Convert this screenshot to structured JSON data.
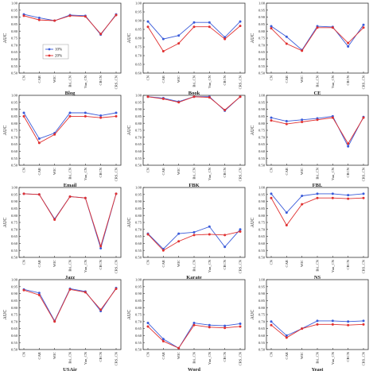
{
  "figure": {
    "ylabel": "AUC",
    "legend": {
      "labels": [
        "10%",
        "20%"
      ],
      "placement": "inside upper-left of first panel"
    },
    "colors": {
      "10%": "#3a5bd9",
      "20%": "#e03030"
    }
  },
  "chart_data": [
    {
      "type": "line",
      "title": "Blog",
      "categories": [
        "CN",
        "CAR",
        "WIC",
        "Bri_CN",
        "Yun_CN",
        "CRCN",
        "CRS_CN"
      ],
      "ylim": [
        0.5,
        1.0
      ],
      "yticks": [
        0.5,
        0.55,
        0.6,
        0.65,
        0.7,
        0.75,
        0.8,
        0.85,
        0.9,
        0.95,
        1.0
      ],
      "series": [
        {
          "name": "10%",
          "values": [
            0.92,
            0.895,
            0.875,
            0.915,
            0.91,
            0.775,
            0.92
          ]
        },
        {
          "name": "20%",
          "values": [
            0.91,
            0.88,
            0.875,
            0.91,
            0.905,
            0.78,
            0.915
          ]
        }
      ]
    },
    {
      "type": "line",
      "title": "Book",
      "categories": [
        "CN",
        "CAR",
        "WIC",
        "Bri_CN",
        "Yun_CN",
        "CRCN",
        "CRS_CN"
      ],
      "ylim": [
        0.6,
        1.0
      ],
      "yticks": [
        0.6,
        0.65,
        0.7,
        0.75,
        0.8,
        0.85,
        0.9,
        0.95,
        1.0
      ],
      "series": [
        {
          "name": "10%",
          "values": [
            0.895,
            0.795,
            0.815,
            0.89,
            0.89,
            0.805,
            0.895
          ]
        },
        {
          "name": "20%",
          "values": [
            0.865,
            0.725,
            0.77,
            0.865,
            0.865,
            0.795,
            0.87
          ]
        }
      ]
    },
    {
      "type": "line",
      "title": "CE",
      "categories": [
        "CN",
        "CAR",
        "WIC",
        "Bri_CN",
        "Yun_CN",
        "CRCN",
        "CRS_CN"
      ],
      "ylim": [
        0.5,
        1.0
      ],
      "yticks": [
        0.5,
        0.55,
        0.6,
        0.65,
        0.7,
        0.75,
        0.8,
        0.85,
        0.9,
        0.95,
        1.0
      ],
      "series": [
        {
          "name": "10%",
          "values": [
            0.835,
            0.76,
            0.665,
            0.835,
            0.83,
            0.69,
            0.845
          ]
        },
        {
          "name": "20%",
          "values": [
            0.82,
            0.71,
            0.66,
            0.825,
            0.825,
            0.715,
            0.825
          ]
        }
      ]
    },
    {
      "type": "line",
      "title": "Email",
      "categories": [
        "CN",
        "CAR",
        "WIC",
        "Bri_CN",
        "Yun_CN",
        "CRCN",
        "CRS_CN"
      ],
      "ylim": [
        0.5,
        1.0
      ],
      "yticks": [
        0.5,
        0.55,
        0.6,
        0.65,
        0.7,
        0.75,
        0.8,
        0.85,
        0.9,
        0.95,
        1.0
      ],
      "series": [
        {
          "name": "10%",
          "values": [
            0.875,
            0.69,
            0.73,
            0.875,
            0.875,
            0.855,
            0.875
          ]
        },
        {
          "name": "20%",
          "values": [
            0.85,
            0.66,
            0.72,
            0.85,
            0.85,
            0.84,
            0.85
          ]
        }
      ]
    },
    {
      "type": "line",
      "title": "FBK",
      "categories": [
        "CN",
        "CAR",
        "WIC",
        "Bri_CN",
        "Yun_CN",
        "CRCN",
        "CRS_CN"
      ],
      "ylim": [
        0.5,
        1.0
      ],
      "yticks": [
        0.5,
        0.55,
        0.6,
        0.65,
        0.7,
        0.75,
        0.8,
        0.85,
        0.9,
        0.95,
        1.0
      ],
      "series": [
        {
          "name": "10%",
          "values": [
            0.99,
            0.98,
            0.955,
            0.99,
            0.99,
            0.89,
            0.99
          ]
        },
        {
          "name": "20%",
          "values": [
            0.99,
            0.975,
            0.95,
            0.99,
            0.985,
            0.895,
            0.99
          ]
        }
      ]
    },
    {
      "type": "line",
      "title": "FBL",
      "categories": [
        "CN",
        "CAR",
        "WIC",
        "Bri_CN",
        "Yun_CN",
        "CRCN",
        "CRS_CN"
      ],
      "ylim": [
        0.5,
        1.0
      ],
      "yticks": [
        0.5,
        0.55,
        0.6,
        0.65,
        0.7,
        0.75,
        0.8,
        0.85,
        0.9,
        0.95,
        1.0
      ],
      "series": [
        {
          "name": "10%",
          "values": [
            0.84,
            0.815,
            0.825,
            0.835,
            0.85,
            0.635,
            0.845
          ]
        },
        {
          "name": "20%",
          "values": [
            0.82,
            0.795,
            0.81,
            0.825,
            0.84,
            0.655,
            0.84
          ]
        }
      ]
    },
    {
      "type": "line",
      "title": "Jazz",
      "categories": [
        "CN",
        "CAR",
        "WIC",
        "Bri_CN",
        "Yun_CN",
        "CRCN",
        "CRS_CN"
      ],
      "ylim": [
        0.5,
        1.0
      ],
      "yticks": [
        0.5,
        0.55,
        0.6,
        0.65,
        0.7,
        0.75,
        0.8,
        0.85,
        0.9,
        0.95,
        1.0
      ],
      "series": [
        {
          "name": "10%",
          "values": [
            0.955,
            0.95,
            0.775,
            0.935,
            0.925,
            0.565,
            0.955
          ]
        },
        {
          "name": "20%",
          "values": [
            0.955,
            0.95,
            0.77,
            0.935,
            0.925,
            0.58,
            0.955
          ]
        }
      ]
    },
    {
      "type": "line",
      "title": "Karate",
      "categories": [
        "CN",
        "CAR",
        "WIC",
        "Bri_CN",
        "Yun_CN",
        "CRCN",
        "CRS_CN"
      ],
      "ylim": [
        0.5,
        1.0
      ],
      "yticks": [
        0.5,
        0.55,
        0.6,
        0.65,
        0.7,
        0.75,
        0.8,
        0.85,
        0.9,
        0.95,
        1.0
      ],
      "series": [
        {
          "name": "10%",
          "values": [
            0.67,
            0.56,
            0.67,
            0.68,
            0.72,
            0.575,
            0.7
          ]
        },
        {
          "name": "20%",
          "values": [
            0.665,
            0.55,
            0.615,
            0.66,
            0.665,
            0.66,
            0.685
          ]
        }
      ]
    },
    {
      "type": "line",
      "title": "NS",
      "categories": [
        "CN",
        "CAR",
        "WIC",
        "Bri_CN",
        "Yun_CN",
        "CRCN",
        "CRS_CN"
      ],
      "ylim": [
        0.5,
        1.0
      ],
      "yticks": [
        0.5,
        0.55,
        0.6,
        0.65,
        0.7,
        0.75,
        0.8,
        0.85,
        0.9,
        0.95,
        1.0
      ],
      "series": [
        {
          "name": "10%",
          "values": [
            0.955,
            0.82,
            0.94,
            0.955,
            0.955,
            0.945,
            0.955
          ]
        },
        {
          "name": "20%",
          "values": [
            0.925,
            0.73,
            0.88,
            0.925,
            0.925,
            0.92,
            0.925
          ]
        }
      ]
    },
    {
      "type": "line",
      "title": "USAir",
      "categories": [
        "CN",
        "CAR",
        "WIC",
        "Bri_CN",
        "Yun_CN",
        "CRCN",
        "CRS_CN"
      ],
      "ylim": [
        0.5,
        1.0
      ],
      "yticks": [
        0.5,
        0.55,
        0.6,
        0.65,
        0.7,
        0.75,
        0.8,
        0.85,
        0.9,
        0.95,
        1.0
      ],
      "series": [
        {
          "name": "10%",
          "values": [
            0.93,
            0.905,
            0.705,
            0.935,
            0.915,
            0.775,
            0.94
          ]
        },
        {
          "name": "20%",
          "values": [
            0.925,
            0.89,
            0.7,
            0.93,
            0.91,
            0.785,
            0.935
          ]
        }
      ]
    },
    {
      "type": "line",
      "title": "Word",
      "categories": [
        "CN",
        "CAR",
        "WIC",
        "Bri_CN",
        "Yun_CN",
        "CRCN",
        "CRS_CN"
      ],
      "ylim": [
        0.5,
        1.0
      ],
      "yticks": [
        0.5,
        0.55,
        0.6,
        0.65,
        0.7,
        0.75,
        0.8,
        0.85,
        0.9,
        0.95,
        1.0
      ],
      "series": [
        {
          "name": "10%",
          "values": [
            0.69,
            0.575,
            0.51,
            0.69,
            0.675,
            0.67,
            0.685
          ]
        },
        {
          "name": "20%",
          "values": [
            0.665,
            0.56,
            0.51,
            0.675,
            0.66,
            0.655,
            0.665
          ]
        }
      ]
    },
    {
      "type": "line",
      "title": "Yeast",
      "categories": [
        "CN",
        "CAR",
        "WIC",
        "Bri_CN",
        "Yun_CN",
        "CRCN",
        "CRS_CN"
      ],
      "ylim": [
        0.5,
        1.0
      ],
      "yticks": [
        0.5,
        0.55,
        0.6,
        0.65,
        0.7,
        0.75,
        0.8,
        0.85,
        0.9,
        0.95,
        1.0
      ],
      "series": [
        {
          "name": "10%",
          "values": [
            0.7,
            0.6,
            0.65,
            0.705,
            0.705,
            0.7,
            0.705
          ]
        },
        {
          "name": "20%",
          "values": [
            0.675,
            0.585,
            0.65,
            0.68,
            0.68,
            0.675,
            0.68
          ]
        }
      ]
    }
  ]
}
